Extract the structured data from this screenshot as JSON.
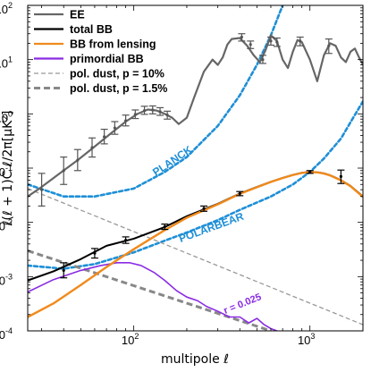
{
  "chart_data": {
    "type": "line",
    "xlabel": "multipole  ℓ",
    "ylabel": "ℓ(ℓ + 1)C ℓ/2π[μK²]",
    "x_scale": "log",
    "y_scale": "log",
    "xlim": [
      25,
      2000
    ],
    "ylim": [
      0.0001,
      100
    ],
    "grid": false,
    "legend_position": "top-left",
    "x_ticks": [
      {
        "value": 100,
        "label": "10",
        "exp": "2"
      },
      {
        "value": 1000,
        "label": "10",
        "exp": "3"
      }
    ],
    "y_ticks": [
      {
        "value": 0.0001,
        "label": "10",
        "exp": "-4"
      },
      {
        "value": 0.001,
        "label": "10",
        "exp": "-3"
      },
      {
        "value": 0.01,
        "label": "10",
        "exp": "-2"
      },
      {
        "value": 0.1,
        "label": "10",
        "exp": "-1"
      },
      {
        "value": 1,
        "label": "10",
        "exp": "0"
      },
      {
        "value": 10,
        "label": "10",
        "exp": "1"
      },
      {
        "value": 100,
        "label": "10",
        "exp": "2"
      }
    ],
    "series": [
      {
        "name": "EE",
        "color": "#666666",
        "style": "solid",
        "x": [
          25,
          30,
          38,
          48,
          60,
          75,
          90,
          105,
          120,
          135,
          150,
          165,
          180,
          200,
          220,
          250,
          280,
          300,
          320,
          340,
          360,
          400,
          440,
          480,
          520,
          560,
          600,
          650,
          700,
          750,
          800,
          850,
          900,
          1000,
          1100,
          1200,
          1300,
          1400,
          1500,
          1600,
          1700,
          1800,
          1900,
          2000
        ],
        "y": [
          0.03,
          0.045,
          0.08,
          0.14,
          0.25,
          0.45,
          0.72,
          1.0,
          1.2,
          1.15,
          1.0,
          0.85,
          0.65,
          0.85,
          2.0,
          6.0,
          10.0,
          8.0,
          11.0,
          19.0,
          24.0,
          25.0,
          18.0,
          12.0,
          9.0,
          15.0,
          28.0,
          22.0,
          10.0,
          7.0,
          14.0,
          23.0,
          21.0,
          10.0,
          4.0,
          12.0,
          20.0,
          18.0,
          11.0,
          9.0,
          14.0,
          16.0,
          11.0,
          8.0
        ]
      },
      {
        "name": "total BB",
        "color": "#000000",
        "style": "solid",
        "x": [
          25,
          35,
          50,
          70,
          100,
          150,
          200,
          300,
          400,
          500,
          600,
          700,
          800,
          900,
          1000,
          1100,
          1200,
          1300,
          1500,
          1700,
          2000
        ],
        "y": [
          0.00085,
          0.00125,
          0.0021,
          0.0037,
          0.005,
          0.0082,
          0.013,
          0.022,
          0.034,
          0.045,
          0.056,
          0.066,
          0.075,
          0.082,
          0.085,
          0.084,
          0.08,
          0.074,
          0.06,
          0.047,
          0.03
        ]
      },
      {
        "name": "BB from lensing",
        "color": "#f08a1c",
        "style": "solid",
        "x": [
          25,
          35,
          50,
          70,
          100,
          150,
          200,
          300,
          400,
          500,
          600,
          700,
          800,
          900,
          1000,
          1100,
          1200,
          1300,
          1500,
          1700,
          2000
        ],
        "y": [
          0.00018,
          0.00032,
          0.0007,
          0.0015,
          0.0032,
          0.0072,
          0.0122,
          0.0215,
          0.0335,
          0.0445,
          0.0555,
          0.0655,
          0.0745,
          0.0815,
          0.0845,
          0.0835,
          0.0795,
          0.0735,
          0.0595,
          0.0465,
          0.0295
        ]
      },
      {
        "name": "primordial BB",
        "color": "#8a2be2",
        "style": "solid",
        "x": [
          25,
          35,
          50,
          65,
          80,
          95,
          110,
          130,
          150,
          175,
          200,
          230,
          260,
          300,
          350,
          400,
          450,
          500,
          550,
          600,
          650
        ],
        "y": [
          0.00052,
          0.00088,
          0.0013,
          0.0016,
          0.0018,
          0.0018,
          0.0016,
          0.0012,
          0.00085,
          0.00055,
          0.00042,
          0.00036,
          0.00028,
          0.00023,
          0.00018,
          0.00018,
          0.00014,
          0.00017,
          0.00013,
          0.00011,
          0.0001
        ]
      },
      {
        "name": "pol. dust, p = 10%",
        "color": "#999999",
        "style": "dashed",
        "x": [
          25,
          2000
        ],
        "y": [
          0.042,
          0.00013
        ]
      },
      {
        "name": "pol. dust, p = 1.5%",
        "color": "#888888",
        "style": "dashed-thick",
        "x": [
          25,
          600
        ],
        "y": [
          0.003,
          0.0001
        ]
      }
    ],
    "noise_curves": [
      {
        "label": "PLANCK",
        "color": "#1e8fd6",
        "x": [
          25,
          40,
          60,
          100,
          150,
          200,
          300,
          400,
          500,
          600,
          700
        ],
        "y": [
          0.05,
          0.03,
          0.03,
          0.042,
          0.085,
          0.16,
          0.6,
          2.2,
          8.0,
          28.0,
          100.0
        ]
      },
      {
        "label": "POLARBEAR",
        "color": "#1e8fd6",
        "x": [
          25,
          40,
          60,
          100,
          150,
          200,
          300,
          400,
          600,
          800,
          1000,
          1200,
          1500,
          1700,
          2000
        ],
        "y": [
          0.0016,
          0.0014,
          0.0017,
          0.0028,
          0.0046,
          0.0065,
          0.011,
          0.017,
          0.03,
          0.05,
          0.085,
          0.15,
          0.35,
          0.7,
          1.7
        ]
      }
    ],
    "error_bars": {
      "EE": [
        {
          "x": 30,
          "y": 0.04,
          "lo": 0.02,
          "hi": 0.08
        },
        {
          "x": 40,
          "y": 0.09,
          "lo": 0.05,
          "hi": 0.16
        },
        {
          "x": 48,
          "y": 0.14,
          "lo": 0.09,
          "hi": 0.22
        },
        {
          "x": 58,
          "y": 0.24,
          "lo": 0.16,
          "hi": 0.36
        },
        {
          "x": 68,
          "y": 0.38,
          "lo": 0.28,
          "hi": 0.52
        },
        {
          "x": 78,
          "y": 0.55,
          "lo": 0.42,
          "hi": 0.72
        },
        {
          "x": 90,
          "y": 0.75,
          "lo": 0.6,
          "hi": 0.95
        },
        {
          "x": 102,
          "y": 0.98,
          "lo": 0.82,
          "hi": 1.18
        },
        {
          "x": 115,
          "y": 1.15,
          "lo": 0.98,
          "hi": 1.38
        },
        {
          "x": 128,
          "y": 1.18,
          "lo": 1.0,
          "hi": 1.4
        },
        {
          "x": 141,
          "y": 1.1,
          "lo": 0.94,
          "hi": 1.3
        },
        {
          "x": 155,
          "y": 0.95,
          "lo": 0.8,
          "hi": 1.12
        },
        {
          "x": 410,
          "y": 26.0,
          "lo": 22.0,
          "hi": 30.0
        },
        {
          "x": 460,
          "y": 19.0,
          "lo": 16.0,
          "hi": 22.0
        },
        {
          "x": 540,
          "y": 10.0,
          "lo": 8.5,
          "hi": 12.0
        },
        {
          "x": 600,
          "y": 22.0,
          "lo": 18.5,
          "hi": 26.0
        },
        {
          "x": 650,
          "y": 21.0,
          "lo": 17.5,
          "hi": 25.0
        },
        {
          "x": 880,
          "y": 22.0,
          "lo": 18.0,
          "hi": 26.0
        },
        {
          "x": 1280,
          "y": 18.0,
          "lo": 13.0,
          "hi": 24.0
        }
      ],
      "total BB": [
        {
          "x": 40,
          "y": 0.0013,
          "lo": 0.00095,
          "hi": 0.0018
        },
        {
          "x": 60,
          "y": 0.0027,
          "lo": 0.0022,
          "hi": 0.0033
        },
        {
          "x": 90,
          "y": 0.0047,
          "lo": 0.0041,
          "hi": 0.0054
        },
        {
          "x": 150,
          "y": 0.0083,
          "lo": 0.0074,
          "hi": 0.0093
        },
        {
          "x": 250,
          "y": 0.018,
          "lo": 0.016,
          "hi": 0.02
        },
        {
          "x": 400,
          "y": 0.034,
          "lo": 0.031,
          "hi": 0.037
        },
        {
          "x": 1000,
          "y": 0.085,
          "lo": 0.08,
          "hi": 0.09
        },
        {
          "x": 1500,
          "y": 0.07,
          "lo": 0.052,
          "hi": 0.092
        }
      ]
    },
    "annotations": [
      {
        "text": "PLANCK",
        "color": "#1e8fd6",
        "x": 170,
        "y": 0.12
      },
      {
        "text": "POLARBEAR",
        "color": "#1e8fd6",
        "x": 280,
        "y": 0.007
      },
      {
        "text": "r = 0.025",
        "color": "#8a2be2",
        "x": 420,
        "y": 0.00028
      }
    ]
  }
}
